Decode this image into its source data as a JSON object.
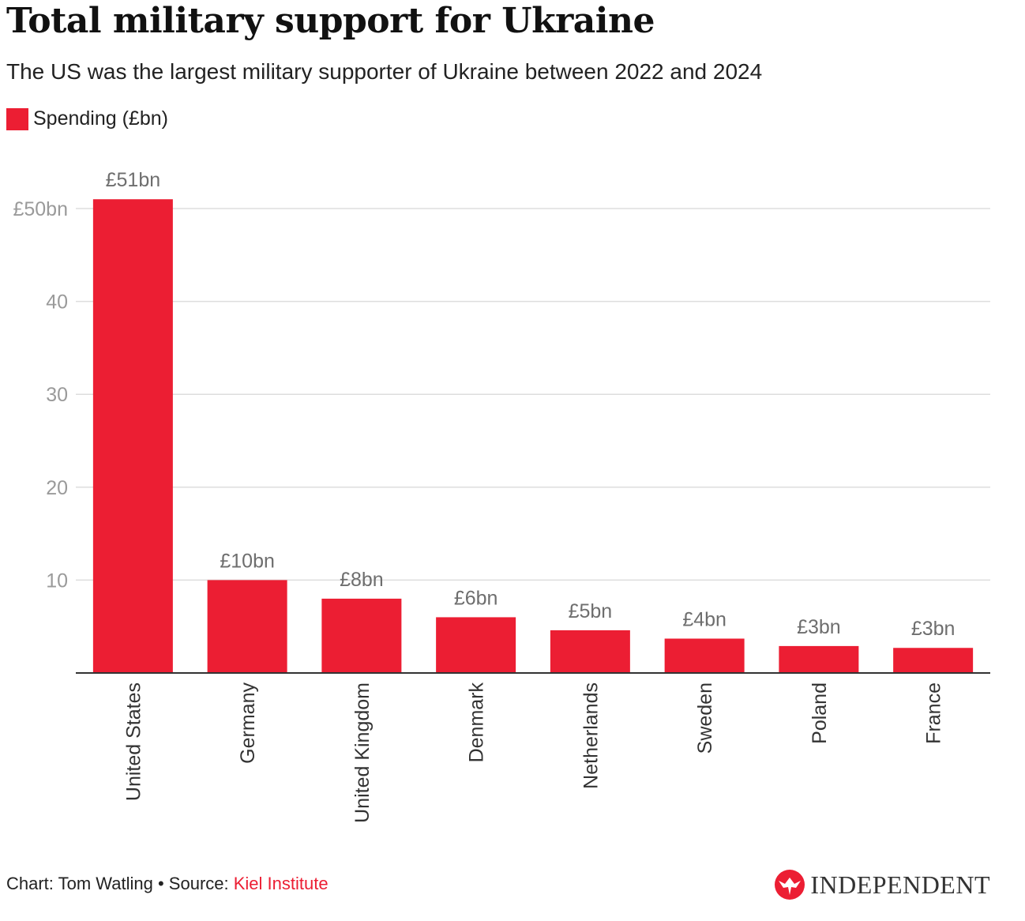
{
  "title": "Total military support for Ukraine",
  "subtitle": "The US was the largest military supporter of Ukraine between 2022 and 2024",
  "legend": {
    "label": "Spending (£bn)",
    "color": "#ec1e33"
  },
  "chart_data": {
    "type": "bar",
    "categories": [
      "United States",
      "Germany",
      "United Kingdom",
      "Denmark",
      "Netherlands",
      "Sweden",
      "Poland",
      "France"
    ],
    "series": [
      {
        "name": "Spending (£bn)",
        "values": [
          51,
          10,
          8,
          6,
          4.6,
          3.7,
          2.9,
          2.7
        ]
      }
    ],
    "data_labels": [
      "£51bn",
      "£10bn",
      "£8bn",
      "£6bn",
      "£5bn",
      "£4bn",
      "£3bn",
      "£3bn"
    ],
    "y_ticks": [
      {
        "value": 10,
        "label": "10"
      },
      {
        "value": 20,
        "label": "20"
      },
      {
        "value": 30,
        "label": "30"
      },
      {
        "value": 40,
        "label": "40"
      },
      {
        "value": 50,
        "label": "£50bn"
      }
    ],
    "ylim": [
      0,
      50
    ],
    "grid": true,
    "x_label_rotation": "vertical",
    "bar_color": "#ec1e33"
  },
  "footer": {
    "chart_credit": "Chart: Tom Watling",
    "separator": "•",
    "source_prefix": "Source:",
    "source_name": "Kiel Institute",
    "source_color": "#ec1e33"
  },
  "brand": {
    "name": "INDEPENDENT",
    "icon": "eagle-logo-icon",
    "icon_color": "#ec1e33"
  }
}
